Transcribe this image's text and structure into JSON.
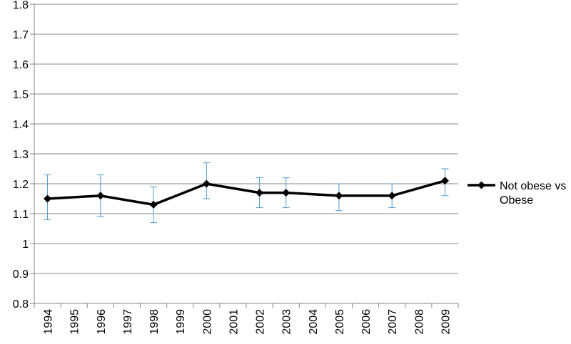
{
  "chart_data": {
    "type": "line",
    "title": "",
    "xlabel": "",
    "ylabel": "",
    "ylim": [
      0.8,
      1.8
    ],
    "y_ticks": [
      "0.8",
      "0.9",
      "1",
      "1.1",
      "1.2",
      "1.3",
      "1.4",
      "1.5",
      "1.6",
      "1.7",
      "1.8"
    ],
    "categories": [
      "1994",
      "1995",
      "1996",
      "1997",
      "1998",
      "1999",
      "2000",
      "2001",
      "2002",
      "2003",
      "2004",
      "2005",
      "2006",
      "2007",
      "2008",
      "2009"
    ],
    "grid": "horizontal",
    "legend_position": "right",
    "colors": {
      "line": "#000000",
      "error_bar": "#4f9ad0",
      "grid": "#878787"
    },
    "series": [
      {
        "name": "Not obese vs Obese",
        "legend_lines": [
          "Not obese vs",
          "Obese"
        ],
        "marker": "diamond",
        "points": [
          {
            "x": "1994",
            "y": 1.15,
            "lower": 1.08,
            "upper": 1.23
          },
          {
            "x": "1996",
            "y": 1.16,
            "lower": 1.09,
            "upper": 1.23
          },
          {
            "x": "1998",
            "y": 1.13,
            "lower": 1.07,
            "upper": 1.19
          },
          {
            "x": "2000",
            "y": 1.2,
            "lower": 1.15,
            "upper": 1.27
          },
          {
            "x": "2002",
            "y": 1.17,
            "lower": 1.12,
            "upper": 1.22
          },
          {
            "x": "2003",
            "y": 1.17,
            "lower": 1.12,
            "upper": 1.22
          },
          {
            "x": "2005",
            "y": 1.16,
            "lower": 1.11,
            "upper": 1.2
          },
          {
            "x": "2007",
            "y": 1.16,
            "lower": 1.12,
            "upper": 1.2
          },
          {
            "x": "2009",
            "y": 1.21,
            "lower": 1.16,
            "upper": 1.25
          }
        ]
      }
    ]
  }
}
